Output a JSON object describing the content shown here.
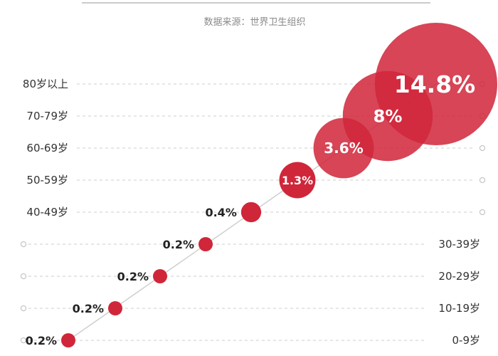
{
  "source": "数据来源：世界卫生组织",
  "chart_data": {
    "type": "scatter",
    "title": "",
    "xlabel": "",
    "ylabel": "",
    "categories": [
      "0-9岁",
      "10-19岁",
      "20-29岁",
      "30-39岁",
      "40-49岁",
      "50-59岁",
      "60-69岁",
      "70-79岁",
      "80岁以上"
    ],
    "value_labels": [
      "0.2%",
      "0.2%",
      "0.2%",
      "0.2%",
      "0.4%",
      "1.3%",
      "3.6%",
      "8%",
      "14.8%"
    ],
    "values": [
      0.2,
      0.2,
      0.2,
      0.2,
      0.4,
      1.3,
      3.6,
      8,
      14.8
    ],
    "bubble_color": "#d0263a",
    "grid": true,
    "grid_style": "dashed",
    "size_encodes": "value"
  }
}
